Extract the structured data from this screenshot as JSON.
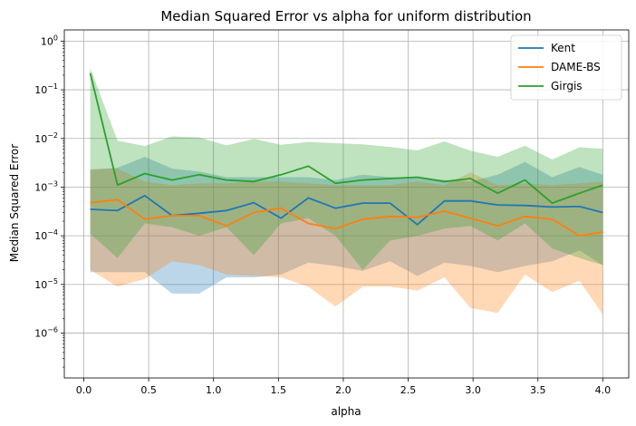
{
  "chart_data": {
    "type": "line",
    "title": "Median Squared Error vs alpha for uniform distribution",
    "xlabel": "alpha",
    "ylabel": "Median Squared Error",
    "xscale": "linear",
    "yscale": "log",
    "xlim": [
      -0.15,
      4.2
    ],
    "ylim": [
      1.2e-07,
      1.7
    ],
    "xticks": [
      0.0,
      0.5,
      1.0,
      1.5,
      2.0,
      2.5,
      3.0,
      3.5,
      4.0
    ],
    "xtick_labels": [
      "0.0",
      "0.5",
      "1.0",
      "1.5",
      "2.0",
      "2.5",
      "3.0",
      "3.5",
      "4.0"
    ],
    "yticks_exp": [
      -6,
      -5,
      -4,
      -3,
      -2,
      -1,
      0
    ],
    "ytick_base": "10",
    "grid": true,
    "legend_position": "top-right",
    "x": [
      0.05,
      0.26,
      0.47,
      0.68,
      0.89,
      1.1,
      1.31,
      1.52,
      1.73,
      1.94,
      2.15,
      2.36,
      2.57,
      2.78,
      2.98,
      3.19,
      3.4,
      3.61,
      3.82,
      4.0
    ],
    "series": [
      {
        "name": "Kent",
        "color": "#1f77b4",
        "values": [
          0.00035,
          0.00033,
          0.00067,
          0.00026,
          0.00029,
          0.00033,
          0.00048,
          0.00023,
          0.0006,
          0.00037,
          0.00047,
          0.00047,
          0.00017,
          0.00052,
          0.00052,
          0.00043,
          0.00042,
          0.00039,
          0.0004,
          0.0003
        ],
        "lower": [
          1.8e-05,
          1.8e-05,
          1.8e-05,
          6.5e-06,
          6.5e-06,
          1.4e-05,
          1.4e-05,
          1.6e-05,
          2.8e-05,
          2.4e-05,
          1.9e-05,
          3e-05,
          1.5e-05,
          2.8e-05,
          2.4e-05,
          1.8e-05,
          2.4e-05,
          3e-05,
          5e-05,
          2.5e-05
        ],
        "upper": [
          0.0023,
          0.0025,
          0.0042,
          0.0024,
          0.0021,
          0.0016,
          0.0016,
          0.0016,
          0.0016,
          0.0014,
          0.0018,
          0.0016,
          0.0016,
          0.0014,
          0.0013,
          0.0018,
          0.0033,
          0.0016,
          0.0026,
          0.0018
        ]
      },
      {
        "name": "DAME-BS",
        "color": "#ff7f0e",
        "values": [
          0.00048,
          0.00055,
          0.00022,
          0.00026,
          0.00026,
          0.00016,
          0.0003,
          0.00037,
          0.00018,
          0.00014,
          0.00022,
          0.00025,
          0.00024,
          0.00032,
          0.00023,
          0.00016,
          0.00025,
          0.00022,
          0.0001,
          0.00012
        ],
        "lower": [
          2e-05,
          9e-06,
          1.3e-05,
          3e-05,
          2.5e-05,
          1.6e-05,
          1.5e-05,
          1.4e-05,
          9e-06,
          3.5e-06,
          9e-06,
          9e-06,
          7.5e-06,
          1.4e-05,
          3.3e-06,
          2.6e-06,
          1.6e-05,
          7e-06,
          1.2e-05,
          2.4e-06
        ],
        "upper": [
          0.0023,
          0.0024,
          0.0013,
          0.0011,
          0.0012,
          0.0012,
          0.0013,
          0.0013,
          0.0012,
          0.0011,
          0.0011,
          0.0011,
          0.0013,
          0.0011,
          0.002,
          0.0011,
          0.0012,
          0.0011,
          0.0012,
          0.0013
        ]
      },
      {
        "name": "Girgis",
        "color": "#2ca02c",
        "values": [
          0.22,
          0.0011,
          0.0019,
          0.0014,
          0.0018,
          0.0014,
          0.0013,
          0.0018,
          0.0027,
          0.0012,
          0.0014,
          0.0015,
          0.0016,
          0.0013,
          0.0015,
          0.00075,
          0.0014,
          0.00047,
          0.00075,
          0.0011
        ],
        "lower": [
          0.00011,
          3.5e-05,
          0.00018,
          0.00015,
          0.0001,
          0.00015,
          4e-05,
          0.00018,
          0.00023,
          0.0001,
          2e-05,
          8e-05,
          0.0001,
          0.00014,
          0.00016,
          8e-05,
          0.00018,
          5.5e-05,
          3.5e-05,
          2.5e-05
        ],
        "upper": [
          0.28,
          0.009,
          0.007,
          0.011,
          0.0105,
          0.0072,
          0.0098,
          0.0074,
          0.0085,
          0.008,
          0.0076,
          0.0067,
          0.0057,
          0.0087,
          0.0056,
          0.0042,
          0.0071,
          0.0037,
          0.0066,
          0.0061
        ]
      }
    ]
  }
}
